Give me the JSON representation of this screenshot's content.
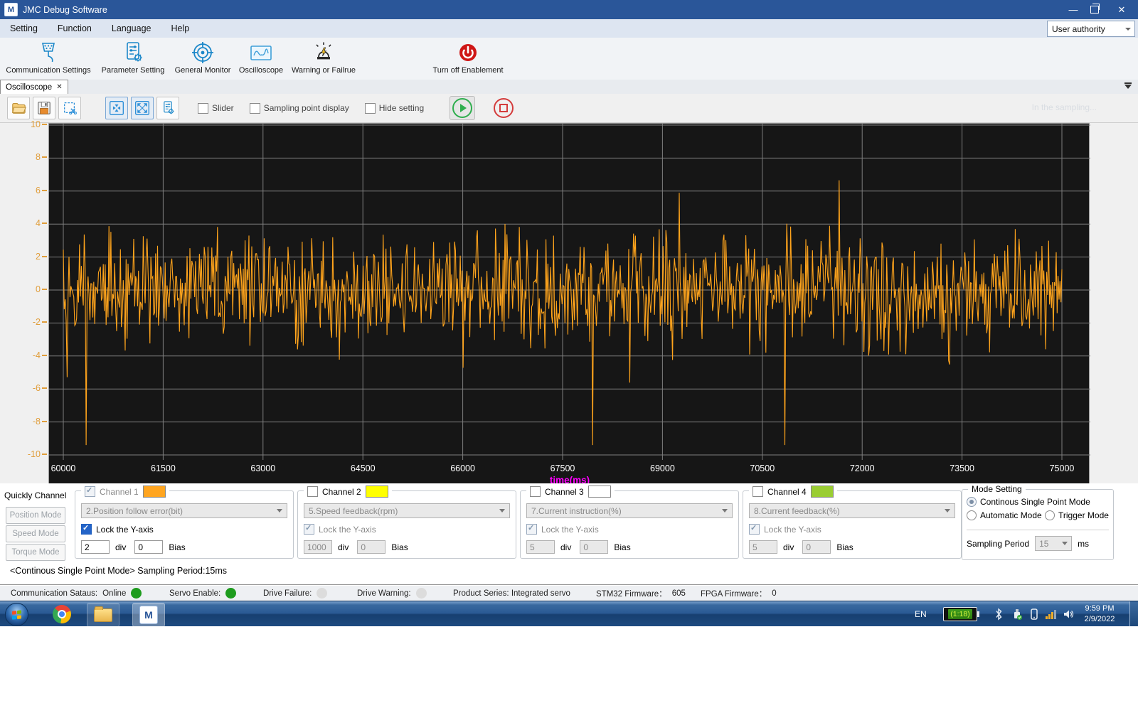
{
  "window": {
    "title": "JMC Debug Software"
  },
  "menubar": {
    "items": [
      "Setting",
      "Function",
      "Language",
      "Help"
    ],
    "user_authority": "User authority"
  },
  "toolbar": {
    "buttons": [
      {
        "label": "Communication Settings"
      },
      {
        "label": "Parameter Setting"
      },
      {
        "label": "General Monitor"
      },
      {
        "label": "Oscilloscope"
      },
      {
        "label": "Warning or Failrue"
      },
      {
        "label": "Turn off Enablement"
      }
    ]
  },
  "tabbar": {
    "active_tab": "Oscilloscope"
  },
  "osc_toolbar": {
    "slider": "Slider",
    "sampling_point": "Sampling point display",
    "hide_setting": "Hide setting",
    "sampling_hint": "In the sampling..."
  },
  "chart": {
    "type": "line",
    "xlabel": "time(ms)",
    "xlim": [
      60000,
      75000
    ],
    "ylim": [
      -10,
      10
    ],
    "xticks": [
      60000,
      61500,
      63000,
      64500,
      66000,
      67500,
      69000,
      70500,
      72000,
      73500,
      75000
    ],
    "yticks": [
      10,
      8,
      6,
      4,
      2,
      0,
      -2,
      -4,
      -6,
      -8,
      -10
    ],
    "bg_color": "#161616",
    "grid_color": "#7e7e7e",
    "line_color": "#FFA41C",
    "ytick_color": "#E09E3C",
    "xtick_color": "#FFFFFF",
    "xlabel_color": "#FF00FF",
    "description": "Channel 1 (2.Position follow error, bit) noise trace centred on 0, mostly within ±4 with spikes to about ±9"
  },
  "quick_channel": {
    "title": "Quickly Channel",
    "buttons": [
      "Position Mode",
      "Speed Mode",
      "Torque Mode"
    ]
  },
  "channel_labels": {
    "lock": "Lock the Y-axis",
    "div": "div",
    "bias": "Bias"
  },
  "channels": [
    {
      "label": "Channel 1",
      "color": "#FFA520",
      "signal": "2.Position follow error(bit)",
      "div": "2",
      "bias": "0"
    },
    {
      "label": "Channel 2",
      "color": "#FFFF00",
      "signal": "5.Speed feedback(rpm)",
      "div": "1000",
      "bias": "0"
    },
    {
      "label": "Channel 3",
      "color": "#FFFFFF",
      "signal": "7.Current instruction(%)",
      "div": "5",
      "bias": "0"
    },
    {
      "label": "Channel 4",
      "color": "#9ACD32",
      "signal": "8.Current feedback(%)",
      "div": "5",
      "bias": "0"
    }
  ],
  "mode_setting": {
    "title": "Mode Setting",
    "radio_continous": "Continous Single Point Mode",
    "radio_automatic": "Automatic Mode",
    "radio_trigger": "Trigger Mode",
    "sampling_period_label": "Sampling Period",
    "sampling_period_value": "15",
    "sampling_period_unit": "ms"
  },
  "status_line": "<Continous Single Point Mode>  Sampling Period:15ms",
  "status_bar": {
    "communication_label": "Communication Sataus:",
    "communication_value": "Online",
    "communication_dot": "#1E9C1E",
    "servo_label": "Servo Enable:",
    "servo_dot": "#1E9C1E",
    "drive_failure_label": "Drive Failure:",
    "drive_failure_dot": "#DCDCDC",
    "drive_warning_label": "Drive Warning:",
    "drive_warning_dot": "#DCDCDC",
    "product_label": "Product Series: Integrated servo",
    "stm32_label": "STM32 Firmware：",
    "stm32_value": "605",
    "fpga_label": "FPGA Firmware：",
    "fpga_value": "0"
  },
  "taskbar": {
    "language": "EN",
    "battery": "(1:18)",
    "time": "9:59 PM",
    "date": "2/9/2022"
  }
}
